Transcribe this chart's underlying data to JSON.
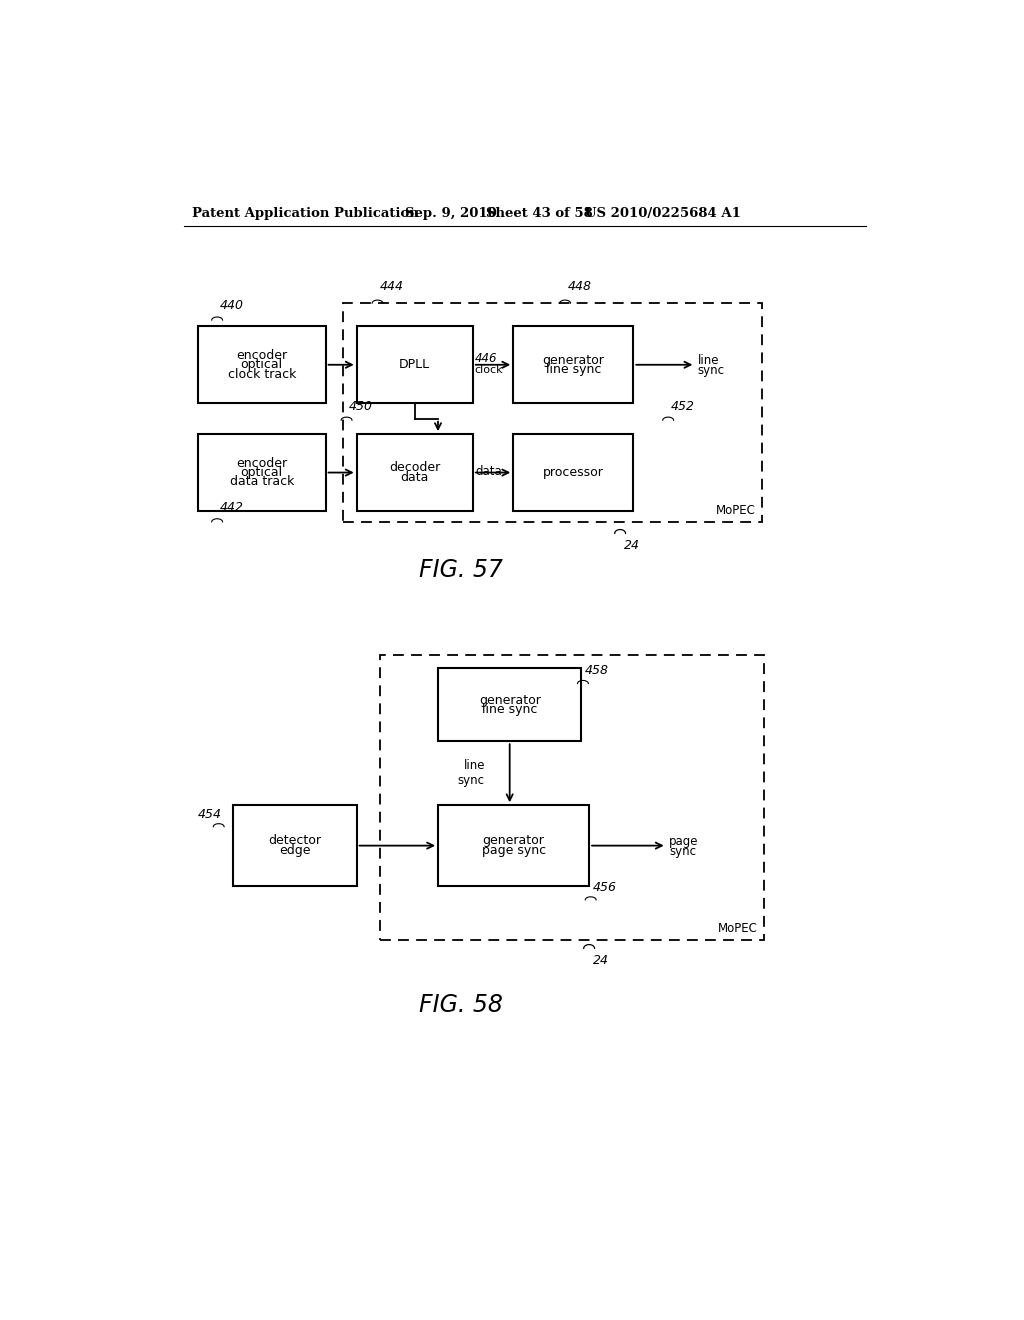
{
  "bg_color": "#ffffff",
  "header_text": "Patent Application Publication",
  "header_date": "Sep. 9, 2010",
  "header_sheet": "Sheet 43 of 58",
  "header_patent": "US 2010/0225684 A1",
  "fig57_title": "FIG. 57",
  "fig58_title": "FIG. 58"
}
